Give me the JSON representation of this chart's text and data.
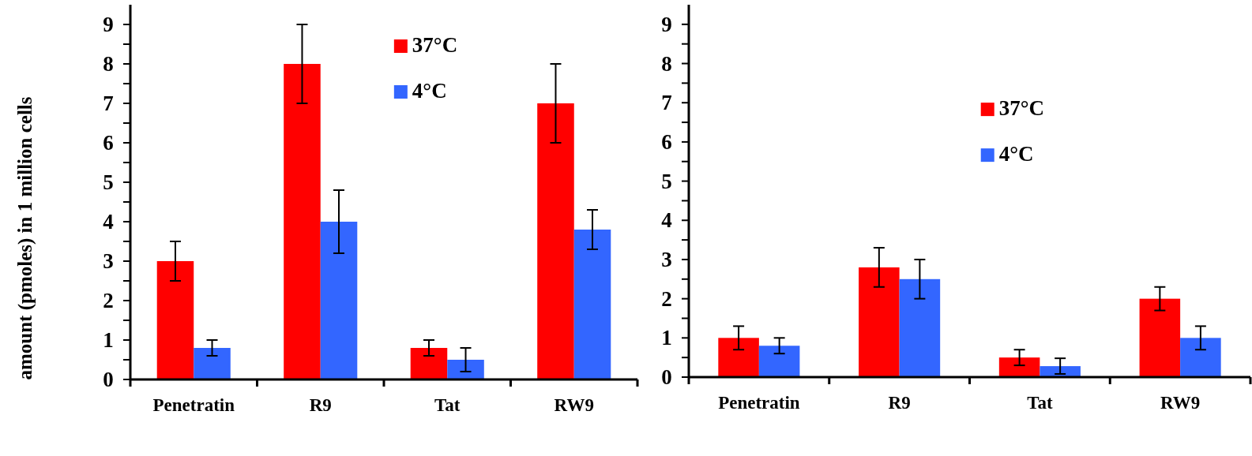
{
  "chart_data": [
    {
      "type": "bar",
      "ylabel": "amount (pmoles) in 1 million cells",
      "categories": [
        "Penetratin",
        "R9",
        "Tat",
        "RW9"
      ],
      "series": [
        {
          "name": "37°C",
          "color": "#ff0000",
          "values": [
            3,
            8,
            0.8,
            7
          ],
          "errors": [
            0.5,
            1,
            0.2,
            1
          ]
        },
        {
          "name": "4°C",
          "color": "#3366ff",
          "values": [
            0.8,
            4,
            0.5,
            3.8
          ],
          "errors": [
            0.2,
            0.8,
            0.3,
            0.5
          ]
        }
      ],
      "ylim": [
        0,
        9.5
      ],
      "yticks": [
        0,
        {
          "value": 0.5,
          "label": null
        },
        1,
        {
          "value": 1.5,
          "label": null
        },
        2,
        {
          "value": 2.5,
          "label": null
        },
        3,
        {
          "value": 3.5,
          "label": null
        },
        4,
        {
          "value": 4.5,
          "label": null
        },
        5,
        {
          "value": 5.5,
          "label": null
        },
        6,
        {
          "value": 6.5,
          "label": null
        },
        7,
        {
          "value": 7.5,
          "label": null
        },
        8,
        {
          "value": 8.5,
          "label": null
        },
        9
      ],
      "legend": "top"
    },
    {
      "type": "bar",
      "categories": [
        "Penetratin",
        "R9",
        "Tat",
        "RW9"
      ],
      "series": [
        {
          "name": "37°C",
          "color": "#ff0000",
          "values": [
            1,
            2.8,
            0.5,
            2
          ],
          "errors": [
            0.3,
            0.5,
            0.2,
            0.3
          ]
        },
        {
          "name": "4°C",
          "color": "#3366ff",
          "values": [
            0.8,
            2.5,
            0.28,
            1
          ],
          "errors": [
            0.2,
            0.5,
            0.2,
            0.3
          ]
        }
      ],
      "ylim": [
        0,
        9.5
      ],
      "yticks": [
        0,
        {
          "value": 0.5,
          "label": null
        },
        1,
        {
          "value": 1.5,
          "label": null
        },
        2,
        {
          "value": 2.5,
          "label": null
        },
        3,
        {
          "value": 3.5,
          "label": null
        },
        4,
        {
          "value": 4.5,
          "label": null
        },
        5,
        {
          "value": 5.5,
          "label": null
        },
        6,
        {
          "value": 6.5,
          "label": null
        },
        7,
        {
          "value": 7.5,
          "label": null
        },
        8,
        {
          "value": 8.5,
          "label": null
        },
        9
      ],
      "legend": "top"
    }
  ]
}
